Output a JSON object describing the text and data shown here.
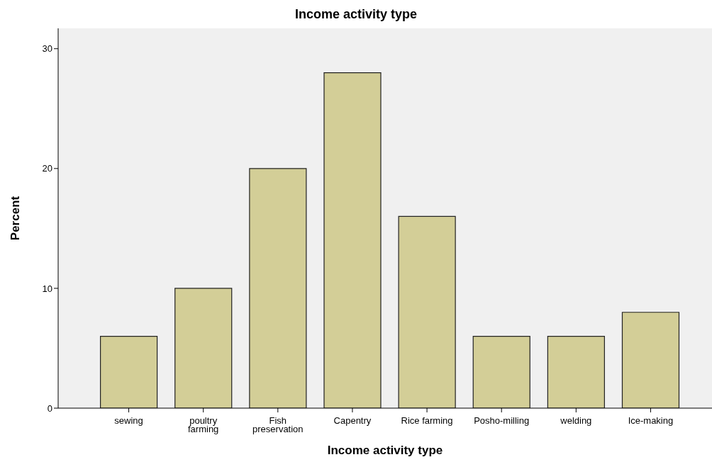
{
  "chart_data": {
    "type": "bar",
    "title": "Income activity type",
    "xlabel": "Income activity type",
    "ylabel": "Percent",
    "categories": [
      "sewing",
      "poultry farming",
      "Fish preservation",
      "Capentry",
      "Rice farming",
      "Posho-milling",
      "welding",
      "Ice-making"
    ],
    "values": [
      6,
      10,
      20,
      28,
      16,
      6,
      6,
      8
    ],
    "color": "#d3ce97",
    "ylim": [
      0,
      31.7
    ],
    "yticks": [
      0,
      10,
      20,
      30
    ],
    "grid": false
  }
}
